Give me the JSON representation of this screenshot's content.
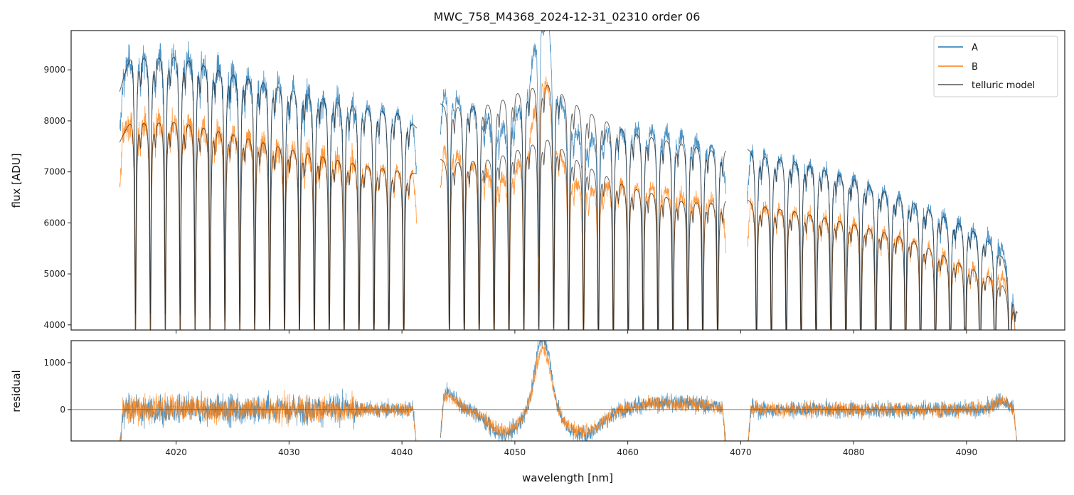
{
  "chart_data": [
    {
      "type": "line",
      "title": "MWC_758_M4368_2024-12-31_02310  order 06",
      "xlabel": "",
      "ylabel": "flux [ADU]",
      "xlim": [
        4010.7,
        4098.7
      ],
      "ylim": [
        3900,
        9770
      ],
      "xticks": [
        4020,
        4030,
        4040,
        4050,
        4060,
        4070,
        4080,
        4090
      ],
      "yticks": [
        4000,
        5000,
        6000,
        7000,
        8000,
        9000
      ],
      "ytick_labels": [
        "4000",
        "5000",
        "6000",
        "7000",
        "8000",
        "9000"
      ],
      "legend": {
        "position": "top-right",
        "entries": [
          "A",
          "B",
          "telluric model"
        ]
      },
      "segments": [
        [
          4015.0,
          4041.3
        ],
        [
          4043.4,
          4068.7
        ],
        [
          4070.6,
          4094.5
        ]
      ],
      "telluric_lines": {
        "segment_starts": [
          4016.4,
          4044.2,
          4071.4
        ],
        "spacing_nm": 1.32,
        "depth": 0.55
      },
      "series": [
        {
          "name": "A",
          "color": "#1f77b4",
          "continuum_x": [
            4015,
            4016,
            4020,
            4025,
            4030,
            4035,
            4040,
            4041.3,
            4043.4,
            4048,
            4051,
            4053,
            4056,
            4060,
            4065,
            4068.7,
            4070.6,
            4075,
            4080,
            4085,
            4090,
            4093,
            4094.5
          ],
          "continuum_y": [
            8600,
            9400,
            9450,
            9100,
            8800,
            8500,
            8300,
            7900,
            8400,
            8500,
            8800,
            8900,
            8400,
            7950,
            7700,
            7500,
            7500,
            7350,
            7000,
            6550,
            6050,
            5600,
            4300
          ]
        },
        {
          "name": "B",
          "color": "#ff7f0e",
          "continuum_x": [
            4015,
            4016,
            4020,
            4025,
            4030,
            4035,
            4040,
            4041.3,
            4043.4,
            4048,
            4051,
            4053,
            4056,
            4060,
            4065,
            4068.7,
            4070.6,
            4075,
            4080,
            4085,
            4090,
            4093,
            4094.5
          ],
          "continuum_y": [
            7600,
            8100,
            8150,
            7900,
            7600,
            7350,
            7150,
            7000,
            7300,
            7400,
            7650,
            7800,
            7300,
            6850,
            6550,
            6500,
            6500,
            6350,
            6100,
            5800,
            5250,
            4950,
            4300
          ]
        },
        {
          "name": "telluric model",
          "color": "#555555"
        }
      ],
      "emission_feature": {
        "center_nm": 4052.5,
        "amplitude": 1600,
        "sigma_nm": 0.7
      }
    },
    {
      "type": "line",
      "title": "",
      "xlabel": "wavelength [nm]",
      "ylabel": "residual",
      "xlim": [
        4010.7,
        4098.7
      ],
      "ylim": [
        -670,
        1470
      ],
      "xticks": [
        4020,
        4030,
        4040,
        4050,
        4060,
        4070,
        4080,
        4090
      ],
      "xtick_labels": [
        "4020",
        "4030",
        "4040",
        "4050",
        "4060",
        "4070",
        "4080",
        "4090"
      ],
      "yticks": [
        0,
        1000
      ],
      "ytick_labels": [
        "0",
        "1000"
      ],
      "reference_line": 0,
      "series": [
        {
          "name": "A",
          "color": "#1f77b4"
        },
        {
          "name": "B",
          "color": "#ff7f0e"
        }
      ],
      "residual_dips": [
        {
          "center_nm": 4049,
          "amplitude": -550,
          "sigma_nm": 1.3
        },
        {
          "center_nm": 4056,
          "amplitude": -550,
          "sigma_nm": 1.6
        }
      ],
      "residual_bumps": [
        {
          "center_nm": 4044,
          "amplitude": 350,
          "sigma_nm": 0.8
        },
        {
          "center_nm": 4064,
          "amplitude": 150,
          "sigma_nm": 3
        },
        {
          "center_nm": 4093,
          "amplitude": 200,
          "sigma_nm": 0.6
        }
      ]
    }
  ]
}
